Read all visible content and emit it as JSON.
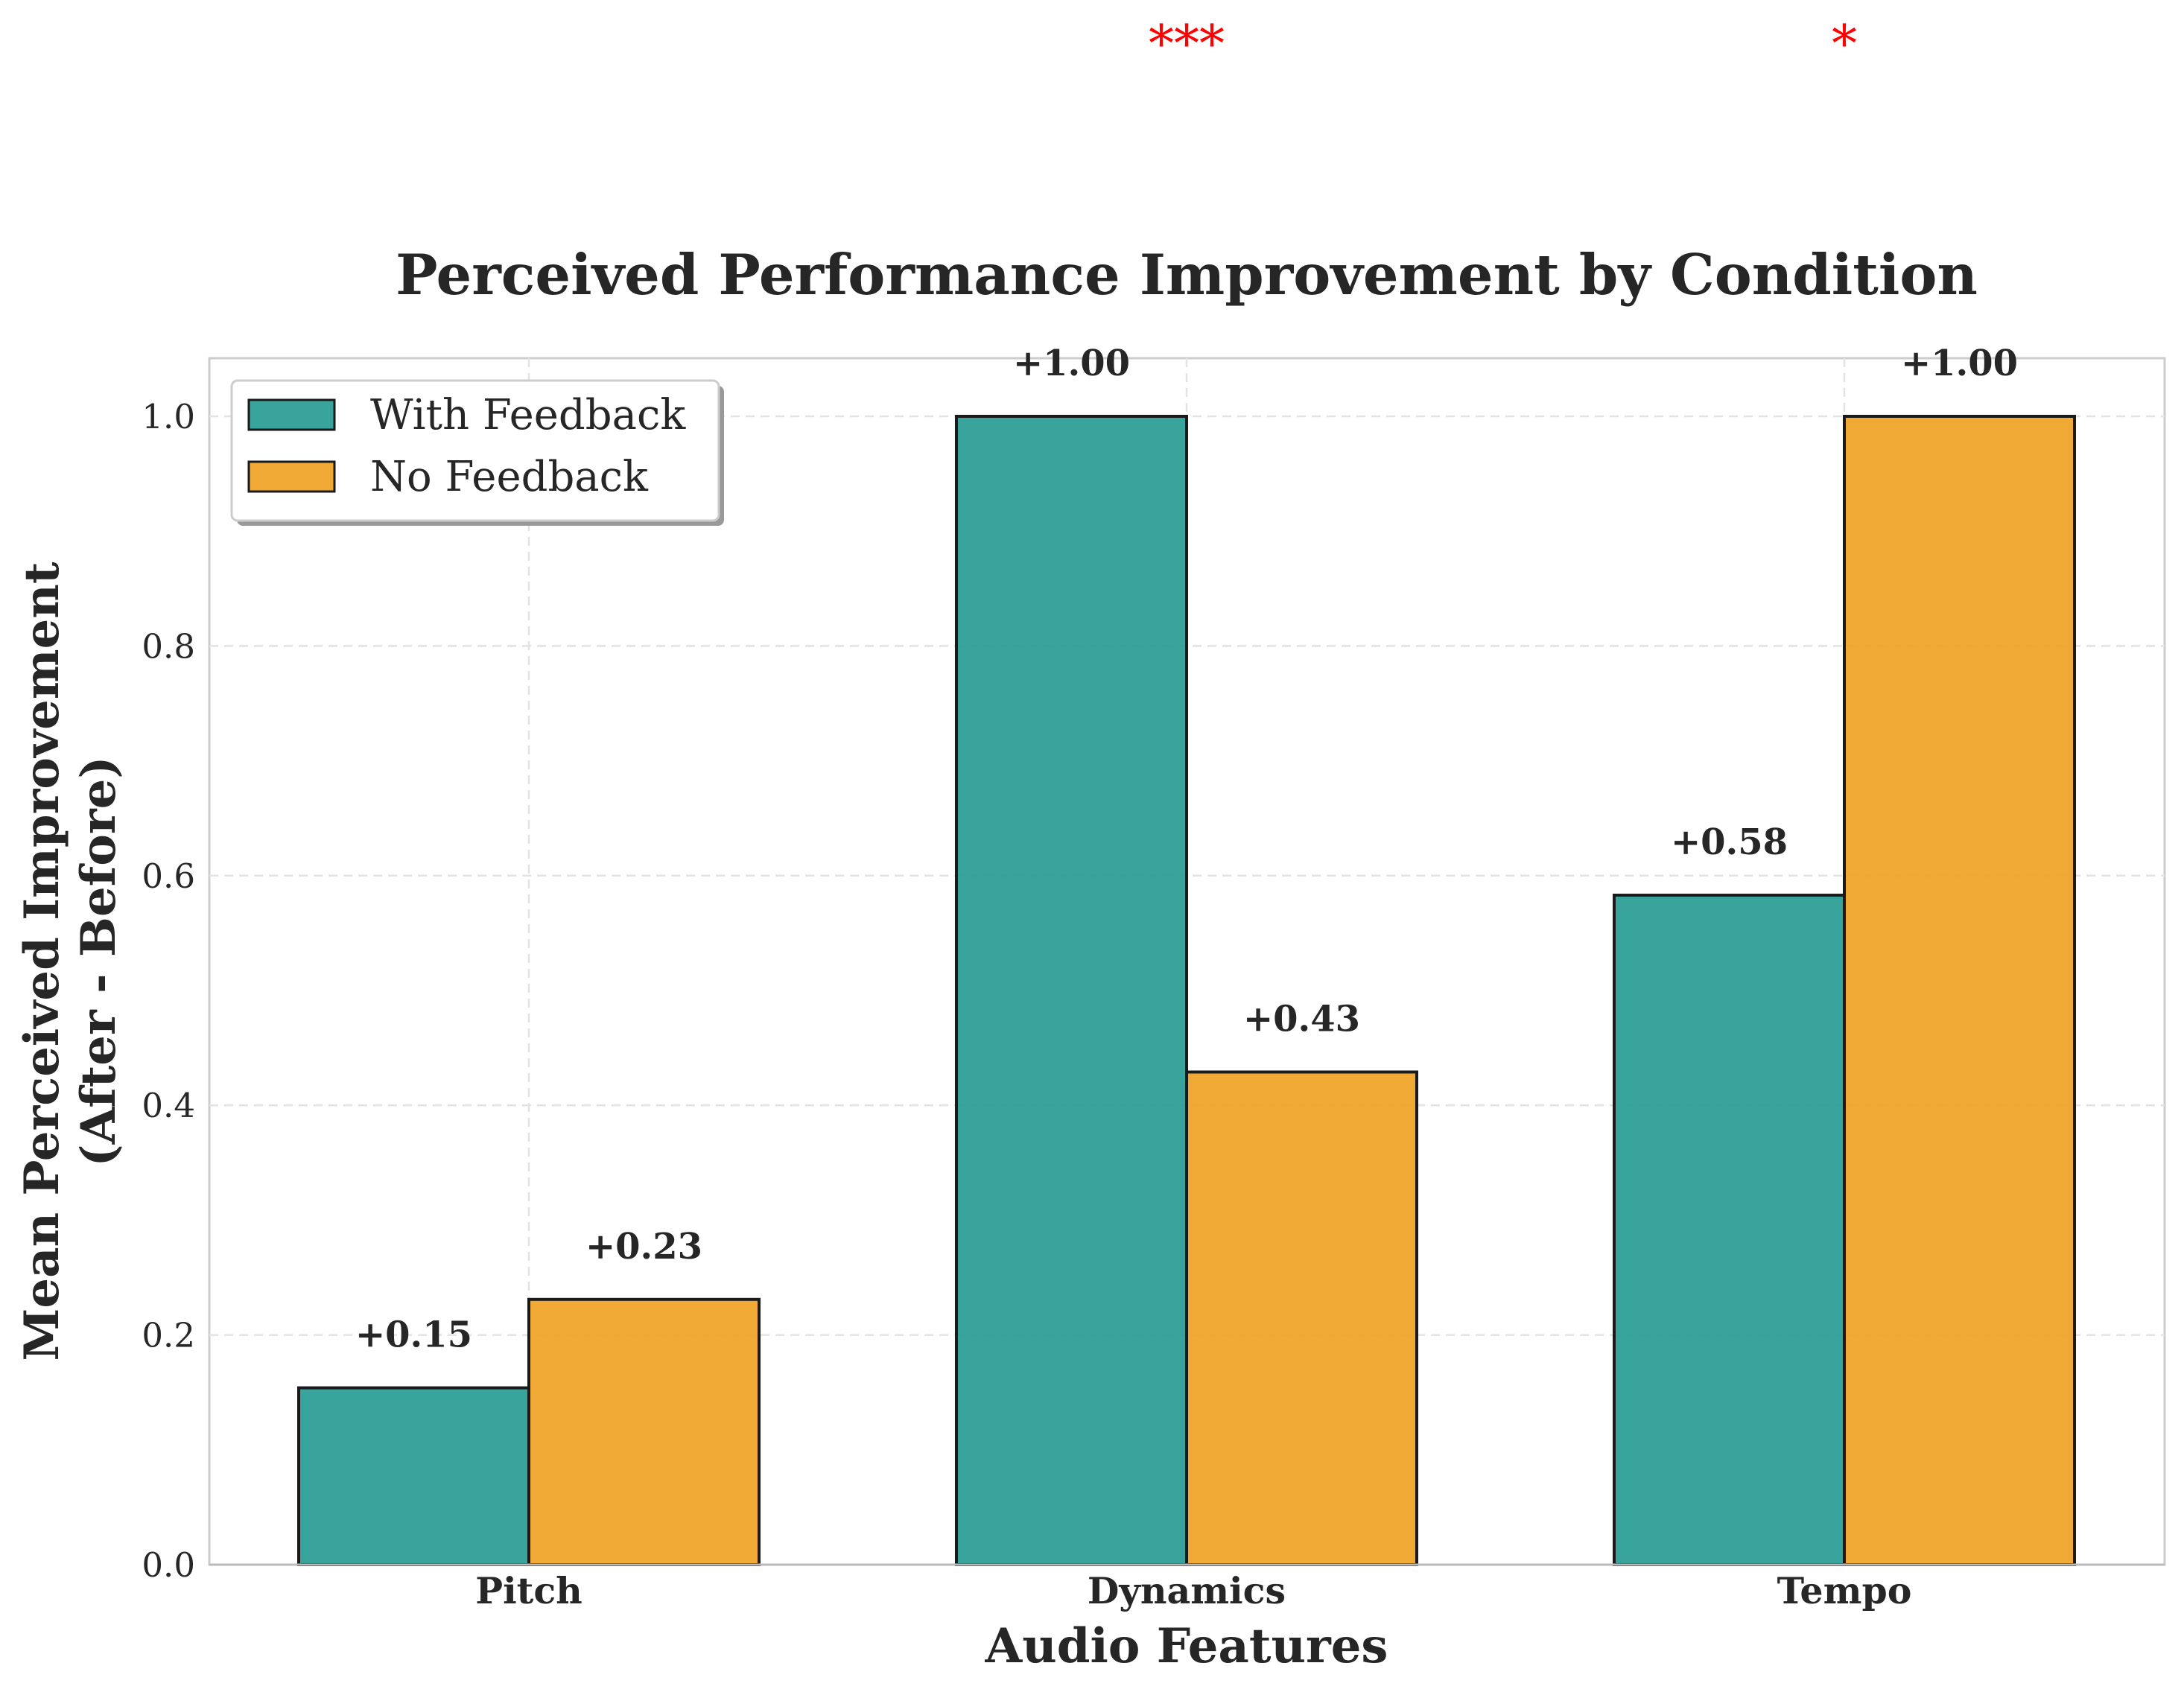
{
  "chart_data": {
    "type": "bar",
    "title": "Perceived Performance Improvement by Condition",
    "xlabel": "Audio Features",
    "ylabel_line1": "Mean Perceived Improvement",
    "ylabel_line2": "(After - Before)",
    "categories": [
      "Pitch",
      "Dynamics",
      "Tempo"
    ],
    "series": [
      {
        "name": "With Feedback",
        "values": [
          0.154,
          1.0,
          0.583
        ],
        "labels": [
          "+0.15",
          "+1.00",
          "+0.58"
        ],
        "color": "#229a91"
      },
      {
        "name": "No Feedback",
        "values": [
          0.231,
          0.429,
          1.0
        ],
        "labels": [
          "+0.23",
          "+0.43",
          "+1.00"
        ],
        "color": "#f0a020"
      }
    ],
    "ylim": [
      0,
      1.05
    ],
    "yticks": [
      0.0,
      0.2,
      0.4,
      0.6,
      0.8,
      1.0
    ],
    "ytick_labels": [
      "0.0",
      "0.2",
      "0.4",
      "0.6",
      "0.8",
      "1.0"
    ],
    "significance": [
      {
        "category_index": 1,
        "label": "***"
      },
      {
        "category_index": 2,
        "label": "*"
      }
    ],
    "grid": true,
    "legend_position": "upper-left",
    "significance_color": "#ff0000"
  }
}
